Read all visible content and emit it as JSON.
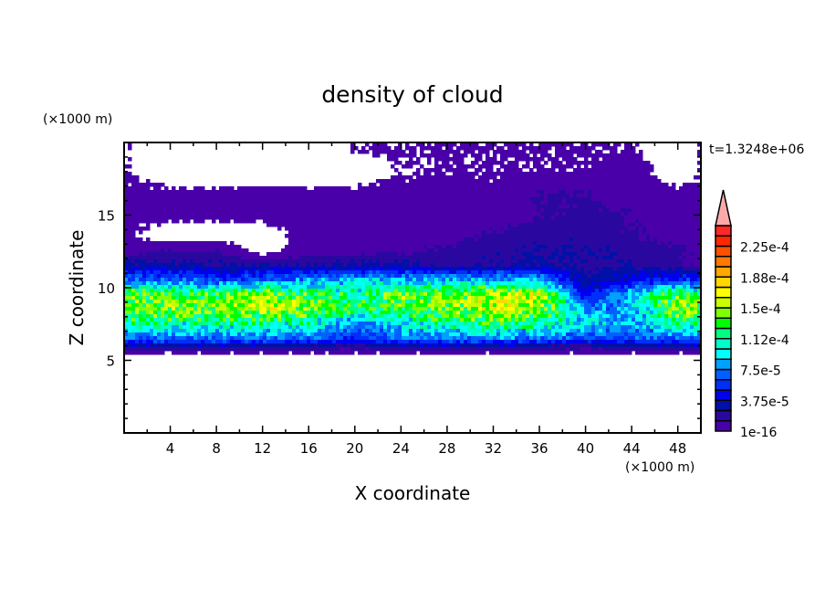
{
  "chart_data": {
    "type": "heatmap",
    "title": "density of cloud",
    "xlabel": "X coordinate",
    "ylabel": "Z coordinate",
    "x_unit": "(×1000 m)",
    "y_unit": "(×1000 m)",
    "time_label": "t=1.3248e+06",
    "xlim": [
      0,
      50
    ],
    "ylim": [
      0,
      20
    ],
    "x_ticks": [
      "4",
      "8",
      "12",
      "16",
      "20",
      "24",
      "28",
      "32",
      "36",
      "40",
      "44",
      "48"
    ],
    "y_ticks": [
      "5",
      "10",
      "15"
    ],
    "grid": false,
    "colorbar": {
      "placement": "right",
      "labels": [
        "1e-16",
        "3.75e-5",
        "7.5e-5",
        "1.12e-4",
        "1.5e-4",
        "1.88e-4",
        "2.25e-4"
      ],
      "levels_min": 1e-16,
      "level_step": 1.25e-05,
      "extend": "max",
      "extend_color": "#ffaaaa",
      "colors": [
        "#4a00a8",
        "#2a08a0",
        "#0010a8",
        "#0000f0",
        "#0030f8",
        "#0060ff",
        "#00a0ff",
        "#00ffff",
        "#00ffc8",
        "#00ff80",
        "#00ff00",
        "#80ff00",
        "#c8ff00",
        "#ffff00",
        "#ffd800",
        "#ffa800",
        "#ff7800",
        "#ff5000",
        "#ff2800",
        "#ff2828"
      ]
    },
    "x": [
      0,
      4,
      8,
      12,
      16,
      20,
      24,
      28,
      32,
      36,
      40,
      44,
      48,
      50
    ],
    "z": [
      19.5,
      18,
      16.5,
      15,
      13.5,
      12.5,
      11.5,
      10.5,
      9.5,
      8.5,
      7.5,
      6.5,
      6,
      5.6,
      5.4,
      0
    ],
    "values": [
      [
        1e-06,
        null,
        null,
        null,
        null,
        1e-06,
        1e-06,
        1e-06,
        1e-06,
        1e-06,
        1e-06,
        1e-06,
        null,
        1e-06
      ],
      [
        1e-06,
        null,
        null,
        null,
        null,
        null,
        1e-06,
        1e-06,
        1e-06,
        1e-06,
        1e-06,
        5e-06,
        null,
        1e-06
      ],
      [
        3e-06,
        3e-06,
        3e-06,
        3e-06,
        3e-06,
        3e-06,
        3e-06,
        3e-06,
        3e-06,
        1.3e-05,
        1.3e-05,
        3e-06,
        3e-06,
        3e-06
      ],
      [
        3e-06,
        3e-06,
        3e-06,
        3e-06,
        3e-06,
        5e-06,
        5e-06,
        3e-06,
        5e-06,
        1.3e-05,
        1.5e-05,
        1.3e-05,
        3e-06,
        3e-06
      ],
      [
        3e-06,
        null,
        null,
        null,
        5e-06,
        5e-06,
        8e-06,
        8e-06,
        1.5e-05,
        2e-05,
        2e-05,
        1.3e-05,
        8e-06,
        3e-06
      ],
      [
        8e-06,
        1.3e-05,
        1.3e-05,
        null,
        8e-06,
        8e-06,
        1e-05,
        1.5e-05,
        2e-05,
        2.5e-05,
        2.5e-05,
        2e-05,
        1.5e-05,
        8e-06
      ],
      [
        3e-05,
        3e-05,
        2.5e-05,
        2.5e-05,
        2.5e-05,
        3e-05,
        3e-05,
        2e-05,
        2.5e-05,
        3e-05,
        2e-05,
        2.5e-05,
        1.5e-05,
        1e-05
      ],
      [
        7e-05,
        7e-05,
        6e-05,
        7e-05,
        8e-05,
        9e-05,
        9e-05,
        9e-05,
        9e-05,
        8e-05,
        3e-05,
        4e-05,
        6e-05,
        5e-05
      ],
      [
        0.00014,
        0.00013,
        0.00013,
        0.00015,
        0.00013,
        0.00011,
        0.00014,
        0.00014,
        0.00016,
        0.00016,
        4e-05,
        9e-05,
        0.00014,
        0.00013
      ],
      [
        0.00014,
        0.00014,
        0.00014,
        0.00016,
        0.00014,
        0.00012,
        0.00013,
        0.00014,
        0.00016,
        0.00015,
        8e-05,
        8e-05,
        0.00015,
        0.00014
      ],
      [
        0.00011,
        0.00011,
        0.00011,
        0.00011,
        0.00011,
        7e-05,
        0.0001,
        0.00011,
        0.00012,
        0.00011,
        9e-05,
        8e-05,
        0.00011,
        0.00011
      ],
      [
        7e-05,
        7e-05,
        7e-05,
        7e-05,
        7e-05,
        5e-05,
        7e-05,
        7e-05,
        8e-05,
        7e-05,
        6e-05,
        6e-05,
        7e-05,
        7e-05
      ],
      [
        3e-05,
        3e-05,
        3e-05,
        3e-05,
        3e-05,
        2e-05,
        3e-05,
        3e-05,
        3e-05,
        3e-05,
        2e-05,
        3e-05,
        3e-05,
        3e-05
      ],
      [
        5e-06,
        5e-06,
        5e-06,
        5e-06,
        5e-06,
        5e-06,
        5e-06,
        5e-06,
        5e-06,
        5e-06,
        5e-06,
        5e-06,
        5e-06,
        5e-06
      ],
      [
        null,
        null,
        null,
        null,
        null,
        null,
        null,
        null,
        null,
        null,
        null,
        null,
        null,
        null
      ],
      [
        null,
        null,
        null,
        null,
        null,
        null,
        null,
        null,
        null,
        null,
        null,
        null,
        null,
        null
      ]
    ]
  }
}
